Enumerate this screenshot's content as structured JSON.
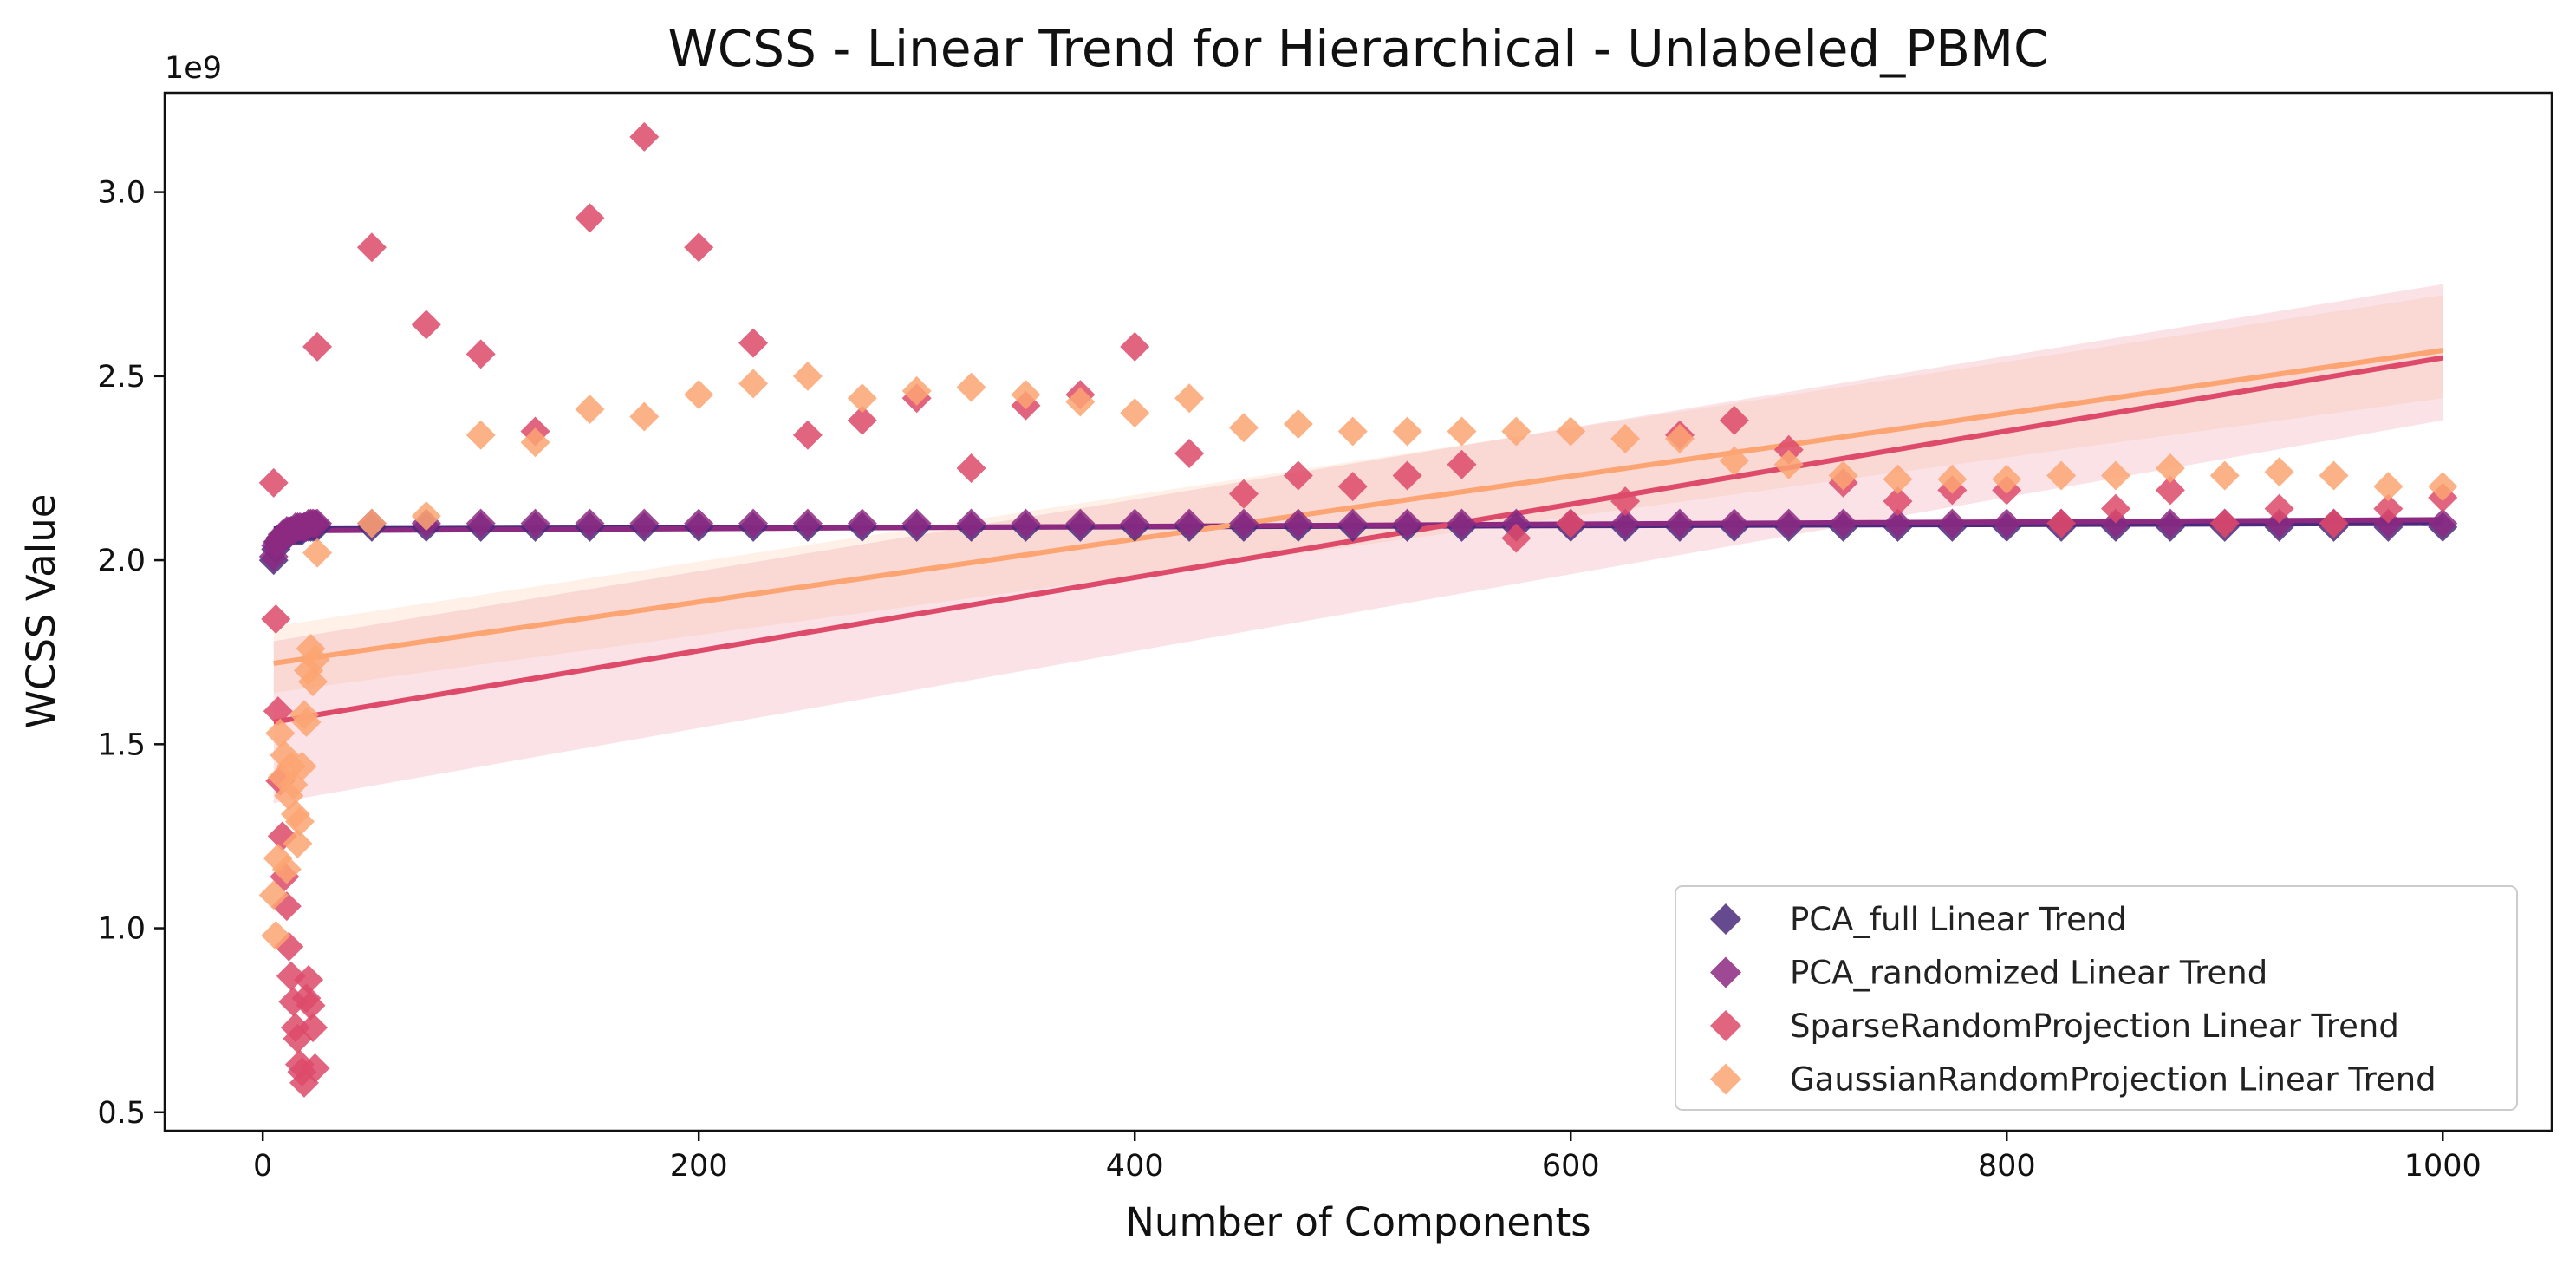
{
  "chart_data": {
    "type": "scatter",
    "title": "WCSS - Linear Trend for Hierarchical - Unlabeled_PBMC",
    "xlabel": "Number of Components",
    "ylabel": "WCSS Value",
    "y_offset_label": "1e9",
    "xlim": [
      -45,
      1050
    ],
    "ylim": [
      0.45,
      3.27
    ],
    "xticks": [
      0,
      200,
      400,
      600,
      800,
      1000
    ],
    "yticks": [
      0.5,
      1.0,
      1.5,
      2.0,
      2.5,
      3.0
    ],
    "ytick_labels": [
      "0.5",
      "1.0",
      "1.5",
      "2.0",
      "2.5",
      "3.0"
    ],
    "grid": false,
    "legend_position": "bottom-right",
    "x": [
      5,
      6,
      7,
      8,
      9,
      10,
      11,
      12,
      13,
      14,
      15,
      16,
      17,
      18,
      19,
      20,
      21,
      22,
      23,
      24,
      25,
      50,
      75,
      100,
      125,
      150,
      175,
      200,
      225,
      250,
      275,
      300,
      325,
      350,
      375,
      400,
      425,
      450,
      475,
      500,
      525,
      550,
      575,
      600,
      625,
      650,
      675,
      700,
      725,
      750,
      775,
      800,
      825,
      850,
      875,
      900,
      925,
      950,
      975,
      1000
    ],
    "series": [
      {
        "name": "PCA_full Linear Trend",
        "color": "#4a2a7c",
        "values": [
          2.0,
          2.03,
          2.05,
          2.06,
          2.06,
          2.07,
          2.07,
          2.07,
          2.08,
          2.08,
          2.08,
          2.08,
          2.08,
          2.08,
          2.09,
          2.09,
          2.09,
          2.09,
          2.09,
          2.09,
          2.09,
          2.09,
          2.09,
          2.09,
          2.09,
          2.09,
          2.09,
          2.09,
          2.09,
          2.09,
          2.09,
          2.09,
          2.09,
          2.09,
          2.09,
          2.09,
          2.09,
          2.09,
          2.09,
          2.09,
          2.09,
          2.09,
          2.09,
          2.09,
          2.09,
          2.09,
          2.09,
          2.09,
          2.09,
          2.09,
          2.09,
          2.09,
          2.09,
          2.09,
          2.09,
          2.09,
          2.09,
          2.09,
          2.09,
          2.09
        ],
        "trend": [
          2.085,
          2.1
        ]
      },
      {
        "name": "PCA_randomized Linear Trend",
        "color": "#8c2981",
        "values": [
          2.01,
          2.04,
          2.05,
          2.06,
          2.07,
          2.07,
          2.08,
          2.08,
          2.08,
          2.08,
          2.09,
          2.09,
          2.09,
          2.09,
          2.09,
          2.09,
          2.1,
          2.1,
          2.1,
          2.1,
          2.1,
          2.1,
          2.1,
          2.1,
          2.1,
          2.1,
          2.1,
          2.1,
          2.1,
          2.1,
          2.1,
          2.1,
          2.1,
          2.1,
          2.1,
          2.1,
          2.1,
          2.1,
          2.1,
          2.1,
          2.1,
          2.1,
          2.1,
          2.1,
          2.1,
          2.1,
          2.1,
          2.1,
          2.1,
          2.1,
          2.1,
          2.1,
          2.1,
          2.1,
          2.1,
          2.1,
          2.1,
          2.1,
          2.1,
          2.1
        ],
        "trend": [
          2.08,
          2.11
        ]
      },
      {
        "name": "SparseRandomProjection Linear Trend",
        "color": "#dd4a6a",
        "values": [
          2.21,
          1.84,
          1.59,
          1.4,
          1.25,
          1.14,
          1.06,
          0.95,
          0.87,
          0.8,
          0.73,
          0.7,
          0.63,
          0.61,
          0.58,
          0.81,
          0.86,
          0.79,
          0.73,
          0.62,
          2.58,
          2.85,
          2.64,
          2.56,
          2.35,
          2.93,
          3.15,
          2.85,
          2.59,
          2.34,
          2.38,
          2.44,
          2.25,
          2.42,
          2.45,
          2.58,
          2.29,
          2.18,
          2.23,
          2.2,
          2.23,
          2.26,
          2.06,
          2.1,
          2.16,
          2.34,
          2.38,
          2.3,
          2.21,
          2.16,
          2.19,
          2.19,
          2.1,
          2.14,
          2.19,
          2.1,
          2.14,
          2.1,
          2.14,
          2.17
        ],
        "trend": [
          1.56,
          2.55
        ],
        "ci_lower": [
          1.34,
          2.38
        ],
        "ci_upper": [
          1.78,
          2.75
        ]
      },
      {
        "name": "GaussianRandomProjection Linear Trend",
        "color": "#fca572",
        "values": [
          1.09,
          0.98,
          1.19,
          1.53,
          1.41,
          1.47,
          1.16,
          1.36,
          1.44,
          1.39,
          1.31,
          1.23,
          1.29,
          1.44,
          1.58,
          1.56,
          1.7,
          1.76,
          1.67,
          1.73,
          2.02,
          2.1,
          2.12,
          2.34,
          2.32,
          2.41,
          2.39,
          2.45,
          2.48,
          2.5,
          2.44,
          2.46,
          2.47,
          2.45,
          2.43,
          2.4,
          2.44,
          2.36,
          2.37,
          2.35,
          2.35,
          2.35,
          2.35,
          2.35,
          2.33,
          2.33,
          2.27,
          2.26,
          2.23,
          2.22,
          2.22,
          2.22,
          2.23,
          2.23,
          2.25,
          2.23,
          2.24,
          2.23,
          2.2,
          2.2
        ],
        "trend": [
          1.72,
          2.57
        ],
        "ci_lower": [
          1.64,
          2.44
        ],
        "ci_upper": [
          1.82,
          2.72
        ]
      }
    ]
  }
}
